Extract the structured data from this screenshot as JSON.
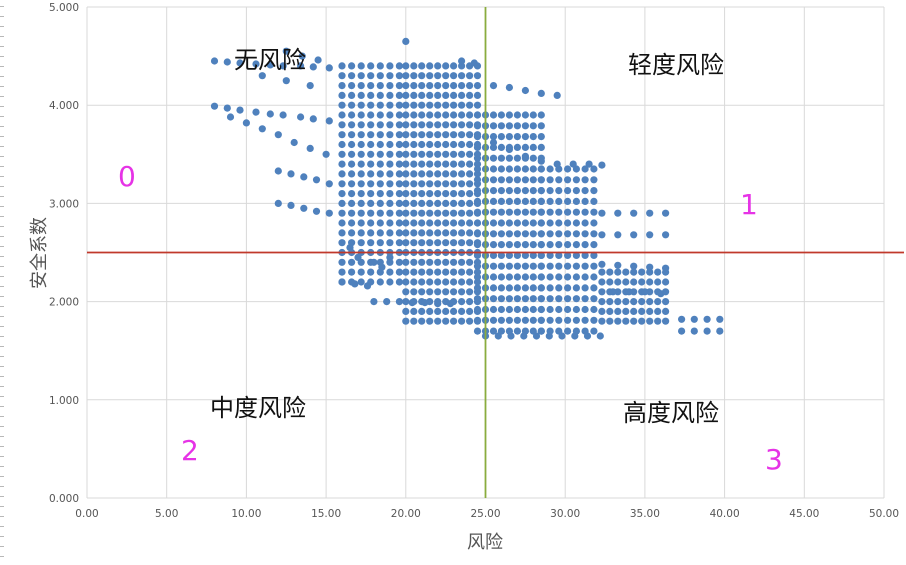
{
  "chart_data": {
    "type": "scatter",
    "title": "",
    "xlabel": "风险",
    "ylabel": "安全系数",
    "xlim": [
      0,
      50
    ],
    "ylim": [
      0,
      5
    ],
    "x_ticks": [
      "0.00",
      "5.00",
      "10.00",
      "15.00",
      "20.00",
      "25.00",
      "30.00",
      "35.00",
      "40.00",
      "45.00",
      "50.00"
    ],
    "y_ticks": [
      "0.000",
      "1.000",
      "2.000",
      "3.000",
      "4.000",
      "5.000"
    ],
    "grid": true,
    "colors": {
      "points": "#4f81bd",
      "hline": "#c0392b",
      "vline": "#8aac3e",
      "grid": "#d9d9d9",
      "quad_numbers": "#e633e6"
    },
    "reference_lines": {
      "vertical_x": 25,
      "horizontal_y": 2.5
    },
    "quadrants": [
      {
        "label": "无风险",
        "number": "0"
      },
      {
        "label": "轻度风险",
        "number": "1"
      },
      {
        "label": "中度风险",
        "number": "2"
      },
      {
        "label": "高度风险",
        "number": "3"
      }
    ],
    "series": [
      {
        "values": [
          [
            8.0,
            4.45
          ],
          [
            8.8,
            4.44
          ],
          [
            9.6,
            4.43
          ],
          [
            10.6,
            4.42
          ],
          [
            11.5,
            4.41
          ],
          [
            12.3,
            4.4
          ],
          [
            13.4,
            4.4
          ],
          [
            14.2,
            4.39
          ],
          [
            15.2,
            4.38
          ],
          [
            8.0,
            3.99
          ],
          [
            8.8,
            3.97
          ],
          [
            9.6,
            3.95
          ],
          [
            10.6,
            3.93
          ],
          [
            11.5,
            3.91
          ],
          [
            12.3,
            3.9
          ],
          [
            13.4,
            3.88
          ],
          [
            14.2,
            3.86
          ],
          [
            15.2,
            3.84
          ],
          [
            9.0,
            3.88
          ],
          [
            10.0,
            3.82
          ],
          [
            11.0,
            3.76
          ],
          [
            12.0,
            3.7
          ],
          [
            13.0,
            3.62
          ],
          [
            14.0,
            3.56
          ],
          [
            15.0,
            3.5
          ],
          [
            12.0,
            3.33
          ],
          [
            12.8,
            3.3
          ],
          [
            13.6,
            3.27
          ],
          [
            14.4,
            3.24
          ],
          [
            15.2,
            3.2
          ],
          [
            12.0,
            3.0
          ],
          [
            12.8,
            2.98
          ],
          [
            13.6,
            2.95
          ],
          [
            14.4,
            2.92
          ],
          [
            15.2,
            2.9
          ],
          [
            12.5,
            4.55
          ],
          [
            13.5,
            4.5
          ],
          [
            14.5,
            4.46
          ],
          [
            11.0,
            4.3
          ],
          [
            12.5,
            4.25
          ],
          [
            14.0,
            4.2
          ],
          [
            16.0,
            2.2
          ],
          [
            16.8,
            2.18
          ],
          [
            17.6,
            2.16
          ],
          [
            18.0,
            2.0
          ],
          [
            18.8,
            2.0
          ],
          [
            19.6,
            2.0
          ],
          [
            20.4,
            1.99
          ],
          [
            21.2,
            1.99
          ],
          [
            22.0,
            1.98
          ],
          [
            22.8,
            1.98
          ],
          [
            20.0,
            4.65
          ],
          [
            23.5,
            4.45
          ],
          [
            24.3,
            4.43
          ],
          [
            32.3,
            2.9
          ],
          [
            33.3,
            2.9
          ],
          [
            34.3,
            2.9
          ],
          [
            35.3,
            2.9
          ],
          [
            36.3,
            2.9
          ],
          [
            32.3,
            2.68
          ],
          [
            33.3,
            2.68
          ],
          [
            34.3,
            2.68
          ],
          [
            35.3,
            2.68
          ],
          [
            36.3,
            2.68
          ],
          [
            32.3,
            2.38
          ],
          [
            33.3,
            2.37
          ],
          [
            34.3,
            2.36
          ],
          [
            35.3,
            2.35
          ],
          [
            36.3,
            2.34
          ],
          [
            37.3,
            1.82
          ],
          [
            38.1,
            1.82
          ],
          [
            38.9,
            1.82
          ],
          [
            39.7,
            1.82
          ],
          [
            37.3,
            1.7
          ],
          [
            38.1,
            1.7
          ],
          [
            38.9,
            1.7
          ],
          [
            39.7,
            1.7
          ],
          [
            25.5,
            3.62
          ],
          [
            26.5,
            3.55
          ],
          [
            27.5,
            3.48
          ],
          [
            28.5,
            3.43
          ],
          [
            29.5,
            3.4
          ],
          [
            30.5,
            3.4
          ],
          [
            31.5,
            3.4
          ],
          [
            32.3,
            3.39
          ],
          [
            25.5,
            4.2
          ],
          [
            26.5,
            4.18
          ],
          [
            27.5,
            4.15
          ],
          [
            28.5,
            4.12
          ],
          [
            29.5,
            4.1
          ],
          [
            25.0,
            1.65
          ],
          [
            25.8,
            1.65
          ],
          [
            26.6,
            1.65
          ],
          [
            27.4,
            1.65
          ],
          [
            28.2,
            1.65
          ],
          [
            29.0,
            1.65
          ],
          [
            29.8,
            1.65
          ],
          [
            30.6,
            1.65
          ],
          [
            31.4,
            1.65
          ],
          [
            32.2,
            1.65
          ],
          [
            33.0,
            2.1
          ],
          [
            34.0,
            2.1
          ],
          [
            35.0,
            2.1
          ],
          [
            36.0,
            2.08
          ],
          [
            18.0,
            2.4
          ],
          [
            18.5,
            2.35
          ],
          [
            19.0,
            2.45
          ],
          [
            17.0,
            2.45
          ],
          [
            16.5,
            2.55
          ]
        ]
      }
    ],
    "dense_regions": [
      {
        "x": [
          16.0,
          20.0
        ],
        "y": [
          2.2,
          4.45
        ],
        "xstep": 0.6,
        "ystep": 0.1
      },
      {
        "x": [
          20.0,
          24.5
        ],
        "y": [
          1.8,
          4.45
        ],
        "xstep": 0.5,
        "ystep": 0.1
      },
      {
        "x": [
          24.5,
          28.5
        ],
        "y": [
          1.7,
          3.9
        ],
        "xstep": 0.5,
        "ystep": 0.11
      },
      {
        "x": [
          28.5,
          32.3
        ],
        "y": [
          1.7,
          3.35
        ],
        "xstep": 0.55,
        "ystep": 0.11
      },
      {
        "x": [
          32.3,
          36.5
        ],
        "y": [
          1.8,
          2.35
        ],
        "xstep": 0.5,
        "ystep": 0.1
      }
    ]
  }
}
